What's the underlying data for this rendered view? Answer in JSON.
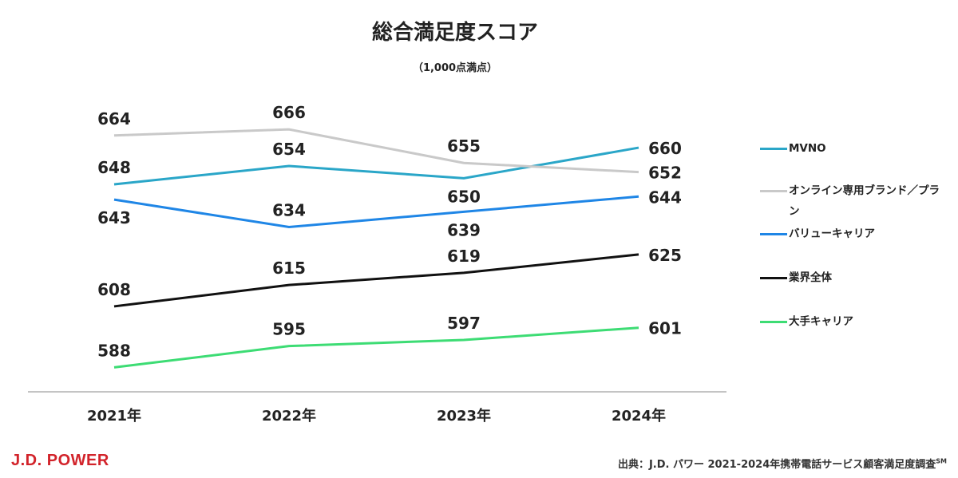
{
  "chart_data": {
    "type": "line",
    "title": "総合満足度スコア",
    "subtitle": "（1,000点満点）",
    "categories": [
      "2021年",
      "2022年",
      "2023年",
      "2024年"
    ],
    "ylim": [
      580,
      680
    ],
    "grid": false,
    "legend_position": "right",
    "series": [
      {
        "name": "MVNO",
        "color": "#2aa6c8",
        "values": [
          648,
          654,
          650,
          660
        ]
      },
      {
        "name": "オンライン専用ブランド／プラン",
        "color": "#c9c9c9",
        "values": [
          664,
          666,
          655,
          652
        ]
      },
      {
        "name": "バリューキャリア",
        "color": "#1f86e6",
        "values": [
          643,
          634,
          639,
          644
        ]
      },
      {
        "name": "業界全体",
        "color": "#111111",
        "values": [
          608,
          615,
          619,
          625
        ]
      },
      {
        "name": "大手キャリア",
        "color": "#3ddc74",
        "values": [
          588,
          595,
          597,
          601
        ]
      }
    ]
  },
  "footer": {
    "logo": "J.D. POWER",
    "logo_color": "#d2232a",
    "source": "出典：J.D. パワー 2021-2024年携帯電話サービス顧客満足度調査",
    "source_sup": "SM"
  }
}
